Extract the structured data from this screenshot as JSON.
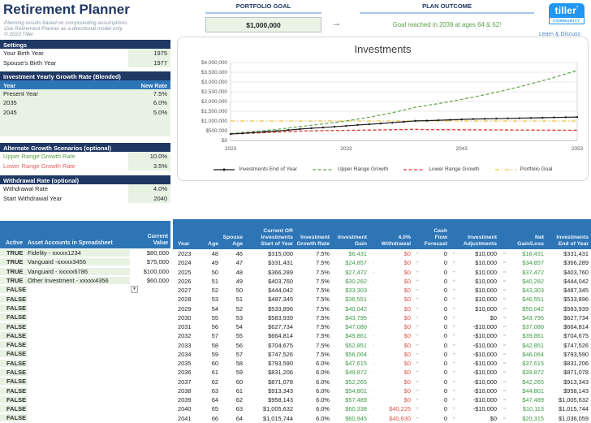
{
  "colors": {
    "navy_header": "#1f3864",
    "blue_header": "#2e75b6",
    "input_green_bg": "#e7f2e3",
    "positive_green": "#3d9b46",
    "negative_red": "#e0524a",
    "outcome_green": "#5fa049",
    "link_blue": "#4a86c8",
    "brand_blue": "#2196f3",
    "goal_gold": "#f0c33c"
  },
  "header": {
    "title": "Retirement Planner",
    "disclaimer_lines": [
      "Planning results based on compounding assumptions.",
      "Use Retirement Planner as a directional model only.",
      "© 2023 Tiller"
    ],
    "portfolio_goal_label": "PORTFOLIO GOAL",
    "portfolio_goal_value": "$1,000,000",
    "arrow": "→",
    "plan_outcome_label": "PLAN OUTCOME",
    "plan_outcome_value": "Goal reached in 2039 at ages 64 & 62!",
    "logo": {
      "brand": "tiller",
      "mark": "’",
      "sub": "COMMUNITY"
    },
    "link": "Learn & Discuss"
  },
  "left_panel": {
    "settings": {
      "title": "Settings",
      "rows": [
        {
          "label": "Your Birth Year",
          "value": "1975"
        },
        {
          "label": "Spouse's Birth Year",
          "value": "1977"
        }
      ]
    },
    "growth": {
      "title": "Investment Yearly Growth Rate (Blended)",
      "col_year": "Year",
      "col_rate": "New Rate",
      "rows": [
        {
          "year": "Present Year",
          "rate": "7.5%"
        },
        {
          "year": "2035",
          "rate": "6.0%"
        },
        {
          "year": "2045",
          "rate": "5.0%"
        }
      ]
    },
    "alternate": {
      "title": "Alternate Growth Scenarios (optional)",
      "rows": [
        {
          "label": "Upper Range Growth Rate",
          "value": "10.0%",
          "tone": "green"
        },
        {
          "label": "Lower Range Growth Rate",
          "value": "3.5%",
          "tone": "red"
        }
      ]
    },
    "withdrawal": {
      "title": "Withdrawal Rate (optional)",
      "rows": [
        {
          "label": "Withdrawal Rate",
          "value": "4.0%"
        },
        {
          "label": "Start Withdrawal Year",
          "value": "2040"
        }
      ]
    }
  },
  "accounts": {
    "headers": {
      "active": "Active",
      "name": "Asset Accounts in Spreadsheet",
      "value": "Current\nValue"
    },
    "rows": [
      {
        "active": "TRUE",
        "name": "Fidelity - xxxxx1234",
        "value": "$80,000"
      },
      {
        "active": "TRUE",
        "name": "Vanguard -xxxxx3456",
        "value": "$75,000"
      },
      {
        "active": "TRUE",
        "name": "Vanguard - xxxxx6786",
        "value": "$100,000"
      },
      {
        "active": "TRUE",
        "name": "Other Investment - xxxxx4356",
        "value": "$60,000"
      }
    ],
    "inactive_label": "FALSE",
    "inactive_count": 15
  },
  "projection": {
    "headers": [
      "Year",
      "Age",
      "Spouse\nAge",
      "Current OR\nInvestments\nStart of Year",
      "Investment\nGrowth Rate",
      "Investment\nGain",
      "",
      "4.0%\nWithdrawal",
      "",
      "Cash Flow\nForecast",
      "",
      "Investment\nAdjustments",
      "",
      "Net\nGain/Loss",
      "Investments\nEnd of Year"
    ],
    "rows": [
      [
        "2023",
        "48",
        "46",
        "$315,000",
        "7.5%",
        "$6,431",
        "-",
        "$0",
        "+",
        "0",
        "+",
        "$10,000",
        "=",
        "$16,431",
        "$331,431"
      ],
      [
        "2024",
        "49",
        "47",
        "$331,431",
        "7.5%",
        "$24,857",
        "-",
        "$0",
        "+",
        "0",
        "+",
        "$10,000",
        "=",
        "$34,857",
        "$366,289"
      ],
      [
        "2025",
        "50",
        "48",
        "$366,289",
        "7.5%",
        "$27,472",
        "-",
        "$0",
        "+",
        "0",
        "+",
        "$10,000",
        "=",
        "$37,472",
        "$403,760"
      ],
      [
        "2026",
        "51",
        "49",
        "$403,760",
        "7.5%",
        "$30,282",
        "-",
        "$0",
        "+",
        "0",
        "+",
        "$10,000",
        "=",
        "$40,282",
        "$444,042"
      ],
      [
        "2027",
        "52",
        "50",
        "$444,042",
        "7.5%",
        "$33,303",
        "-",
        "$0",
        "+",
        "0",
        "+",
        "$10,000",
        "=",
        "$43,303",
        "$487,345"
      ],
      [
        "2028",
        "53",
        "51",
        "$487,345",
        "7.5%",
        "$36,551",
        "-",
        "$0",
        "+",
        "0",
        "+",
        "$10,000",
        "=",
        "$46,551",
        "$533,896"
      ],
      [
        "2029",
        "54",
        "52",
        "$533,896",
        "7.5%",
        "$40,042",
        "-",
        "$0",
        "+",
        "0",
        "+",
        "$10,000",
        "=",
        "$50,042",
        "$583,939"
      ],
      [
        "2030",
        "55",
        "53",
        "$583,939",
        "7.5%",
        "$43,795",
        "-",
        "$0",
        "+",
        "0",
        "+",
        "$0",
        "=",
        "$43,795",
        "$627,734"
      ],
      [
        "2031",
        "56",
        "54",
        "$627,734",
        "7.5%",
        "$47,080",
        "-",
        "$0",
        "+",
        "0",
        "+",
        "-$10,000",
        "=",
        "$37,080",
        "$664,814"
      ],
      [
        "2032",
        "57",
        "55",
        "$664,814",
        "7.5%",
        "$49,861",
        "-",
        "$0",
        "+",
        "0",
        "+",
        "-$10,000",
        "=",
        "$39,861",
        "$704,675"
      ],
      [
        "2033",
        "58",
        "56",
        "$704,675",
        "7.5%",
        "$52,851",
        "-",
        "$0",
        "+",
        "0",
        "+",
        "-$10,000",
        "=",
        "$42,851",
        "$747,526"
      ],
      [
        "2034",
        "59",
        "57",
        "$747,526",
        "7.5%",
        "$56,064",
        "-",
        "$0",
        "+",
        "0",
        "+",
        "-$10,000",
        "=",
        "$46,064",
        "$793,590"
      ],
      [
        "2035",
        "60",
        "58",
        "$793,590",
        "6.0%",
        "$47,615",
        "-",
        "$0",
        "+",
        "0",
        "+",
        "-$10,000",
        "=",
        "$37,615",
        "$831,206"
      ],
      [
        "2036",
        "61",
        "59",
        "$831,206",
        "6.0%",
        "$49,872",
        "-",
        "$0",
        "+",
        "0",
        "+",
        "-$10,000",
        "=",
        "$39,872",
        "$871,078"
      ],
      [
        "2037",
        "62",
        "60",
        "$871,078",
        "6.0%",
        "$52,265",
        "-",
        "$0",
        "+",
        "0",
        "+",
        "-$10,000",
        "=",
        "$42,265",
        "$913,343"
      ],
      [
        "2038",
        "63",
        "61",
        "$913,343",
        "6.0%",
        "$54,801",
        "-",
        "$0",
        "+",
        "0",
        "+",
        "-$10,000",
        "=",
        "$44,801",
        "$958,143"
      ],
      [
        "2039",
        "64",
        "62",
        "$958,143",
        "6.0%",
        "$57,489",
        "-",
        "$0",
        "+",
        "0",
        "+",
        "-$10,000",
        "=",
        "$47,489",
        "$1,005,632"
      ],
      [
        "2040",
        "65",
        "63",
        "$1,005,632",
        "6.0%",
        "$60,338",
        "-",
        "$40,225",
        "+",
        "0",
        "+",
        "-$10,000",
        "=",
        "$10,113",
        "$1,015,744"
      ],
      [
        "2041",
        "66",
        "64",
        "$1,015,744",
        "6.0%",
        "$60,945",
        "-",
        "$40,630",
        "+",
        "0",
        "+",
        "$0",
        "=",
        "$20,315",
        "$1,036,059"
      ]
    ]
  },
  "chart_data": {
    "type": "line",
    "title": "Investments",
    "xlabel": "",
    "ylabel": "",
    "x_start_year": 2023,
    "x_end_year": 2053,
    "x_ticks": [
      2023,
      2033,
      2043,
      2053
    ],
    "ylim": [
      0,
      4000000
    ],
    "y_tick_step": 500000,
    "y_tick_labels": [
      "$0",
      "$500,000",
      "$1,000,000",
      "$1,500,000",
      "$2,000,000",
      "$2,500,000",
      "$3,000,000",
      "$3,500,000",
      "$4,000,000"
    ],
    "grid": true,
    "legend_position": "bottom",
    "series": [
      {
        "name": "Investments End of Year",
        "style": "solid-marker",
        "color": "#1a1a1a",
        "values": [
          331431,
          366289,
          403760,
          444042,
          487345,
          533896,
          583939,
          627734,
          664814,
          704675,
          747526,
          793590,
          831206,
          871078,
          913343,
          958143,
          1005632,
          1015744,
          1036059,
          1056781,
          1077917,
          1099475,
          1110470,
          1121575,
          1132791,
          1144119,
          1155560,
          1167116,
          1178787,
          1190575,
          1202481
        ]
      },
      {
        "name": "Upper Range Growth",
        "style": "dashed",
        "color": "#6aa84f",
        "values": [
          356500,
          402150,
          452365,
          507602,
          568362,
          635198,
          708718,
          779589,
          847548,
          922303,
          1004533,
          1094987,
          1194485,
          1303934,
          1424327,
          1556760,
          1702436,
          1794582,
          1894000,
          1998000,
          2108000,
          2224000,
          2346000,
          2475000,
          2611000,
          2755000,
          2906000,
          3066000,
          3235000,
          3413000,
          3600000
        ]
      },
      {
        "name": "Lower Range Growth",
        "style": "dashed",
        "color": "#e03b30",
        "values": [
          336025,
          357786,
          380308,
          403619,
          427746,
          452717,
          478562,
          495312,
          502648,
          510241,
          518099,
          526233,
          534651,
          543364,
          552382,
          561715,
          571375,
          558518,
          555725,
          552946,
          550181,
          547430,
          544693,
          541970,
          539260,
          536564,
          533881,
          531211,
          528555,
          525913,
          523283
        ]
      },
      {
        "name": "Portfolio Goal",
        "style": "dash-dot",
        "color": "#f0c33c",
        "constant": 1000000
      }
    ]
  }
}
